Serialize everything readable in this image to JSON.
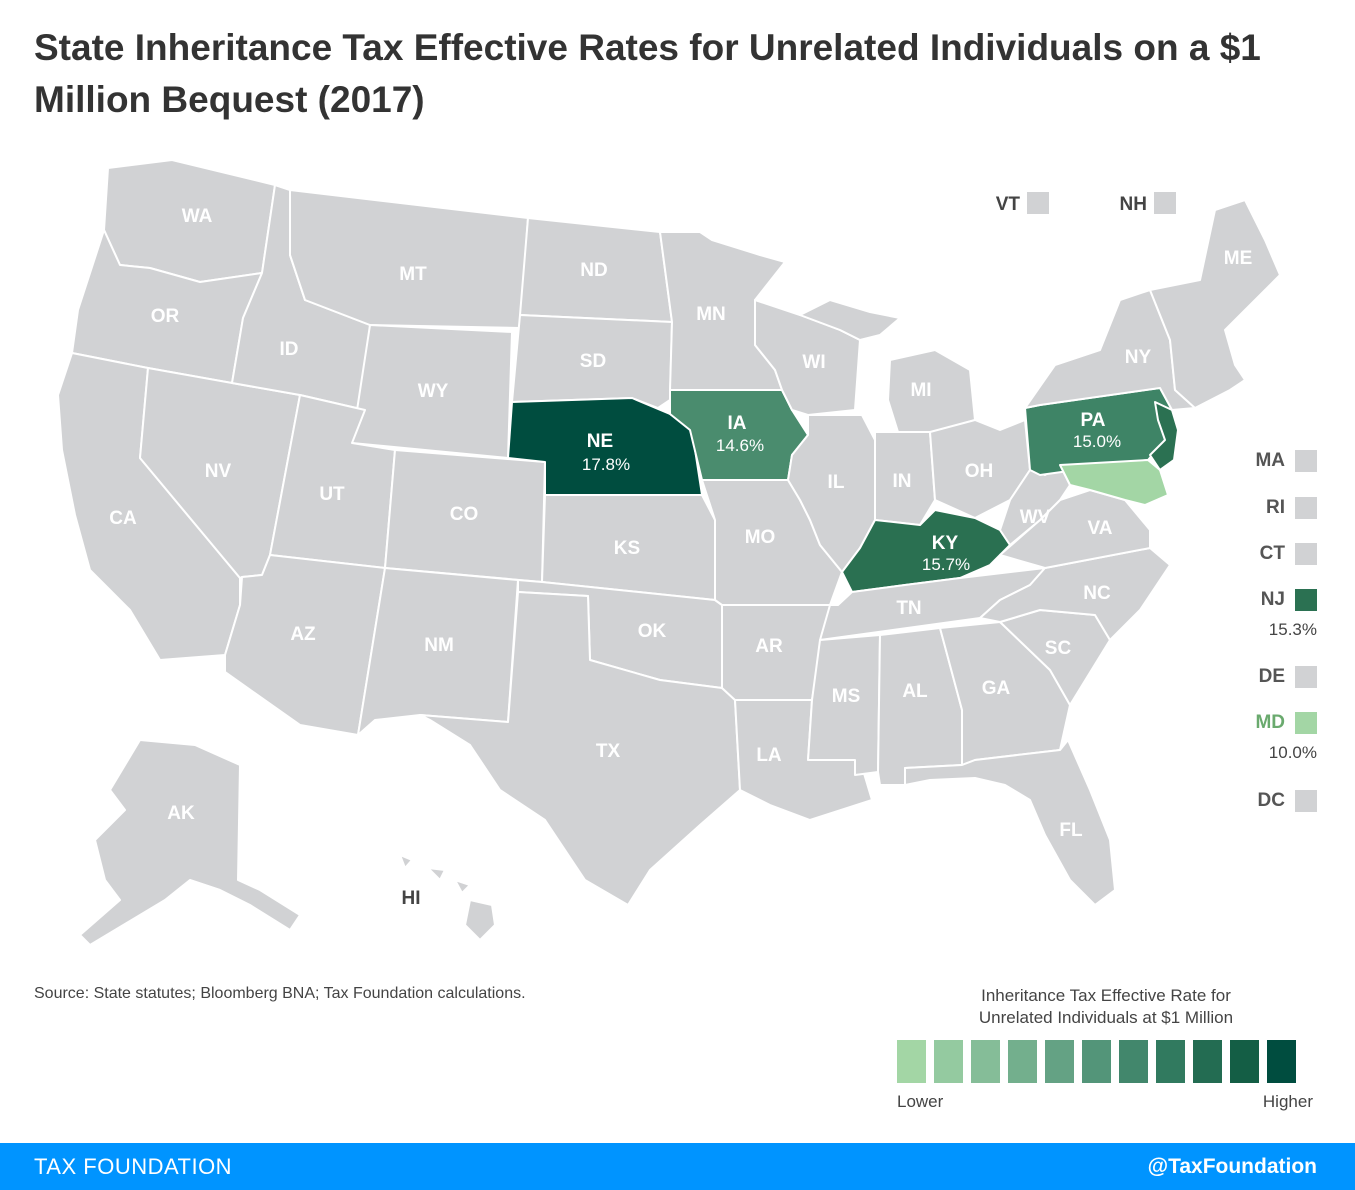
{
  "title": "State Inheritance Tax Effective Rates for Unrelated Individuals on a $1 Million Bequest (2017)",
  "source": "Source: State statutes; Bloomberg BNA; Tax Foundation calculations.",
  "colors": {
    "no_tax": "#d1d2d4",
    "md": "#a3d6a5",
    "ia": "#4a8c6e",
    "pa": "#3e8466",
    "nj": "#2b7152",
    "ky": "#2a7051",
    "ne": "#004d3f"
  },
  "states": {
    "WA": {
      "label": "WA"
    },
    "OR": {
      "label": "OR"
    },
    "CA": {
      "label": "CA"
    },
    "NV": {
      "label": "NV"
    },
    "ID": {
      "label": "ID"
    },
    "MT": {
      "label": "MT"
    },
    "WY": {
      "label": "WY"
    },
    "UT": {
      "label": "UT"
    },
    "AZ": {
      "label": "AZ"
    },
    "CO": {
      "label": "CO"
    },
    "NM": {
      "label": "NM"
    },
    "ND": {
      "label": "ND"
    },
    "SD": {
      "label": "SD"
    },
    "NE": {
      "label": "NE",
      "rate": "17.8%"
    },
    "KS": {
      "label": "KS"
    },
    "OK": {
      "label": "OK"
    },
    "TX": {
      "label": "TX"
    },
    "MN": {
      "label": "MN"
    },
    "IA": {
      "label": "IA",
      "rate": "14.6%"
    },
    "MO": {
      "label": "MO"
    },
    "AR": {
      "label": "AR"
    },
    "LA": {
      "label": "LA"
    },
    "WI": {
      "label": "WI"
    },
    "IL": {
      "label": "IL"
    },
    "MI": {
      "label": "MI"
    },
    "IN": {
      "label": "IN"
    },
    "OH": {
      "label": "OH"
    },
    "KY": {
      "label": "KY",
      "rate": "15.7%"
    },
    "TN": {
      "label": "TN"
    },
    "MS": {
      "label": "MS"
    },
    "AL": {
      "label": "AL"
    },
    "GA": {
      "label": "GA"
    },
    "FL": {
      "label": "FL"
    },
    "SC": {
      "label": "SC"
    },
    "NC": {
      "label": "NC"
    },
    "VA": {
      "label": "VA"
    },
    "WV": {
      "label": "WV"
    },
    "PA": {
      "label": "PA",
      "rate": "15.0%"
    },
    "NY": {
      "label": "NY"
    },
    "ME": {
      "label": "ME"
    },
    "AK": {
      "label": "AK"
    },
    "HI": {
      "label": "HI"
    }
  },
  "top_small_states": [
    {
      "label": "VT"
    },
    {
      "label": "NH"
    }
  ],
  "side_states": [
    {
      "label": "MA"
    },
    {
      "label": "RI"
    },
    {
      "label": "CT"
    },
    {
      "label": "NJ",
      "rate": "15.3%"
    },
    {
      "label": "DE"
    },
    {
      "label": "MD",
      "rate": "10.0%"
    },
    {
      "label": "DC"
    }
  ],
  "legend": {
    "title_line1": "Inheritance Tax Effective Rate for",
    "title_line2": "Unrelated Individuals at $1 Million",
    "low_label": "Lower",
    "high_label": "Higher",
    "scale_colors": [
      "#a3d6a5",
      "#94caa0",
      "#85bd98",
      "#73af8d",
      "#64a284",
      "#539579",
      "#42876c",
      "#317a5f",
      "#236c52",
      "#145e45",
      "#004d3f"
    ]
  },
  "footer": {
    "org": "TAX FOUNDATION",
    "handle": "@TaxFoundation"
  }
}
